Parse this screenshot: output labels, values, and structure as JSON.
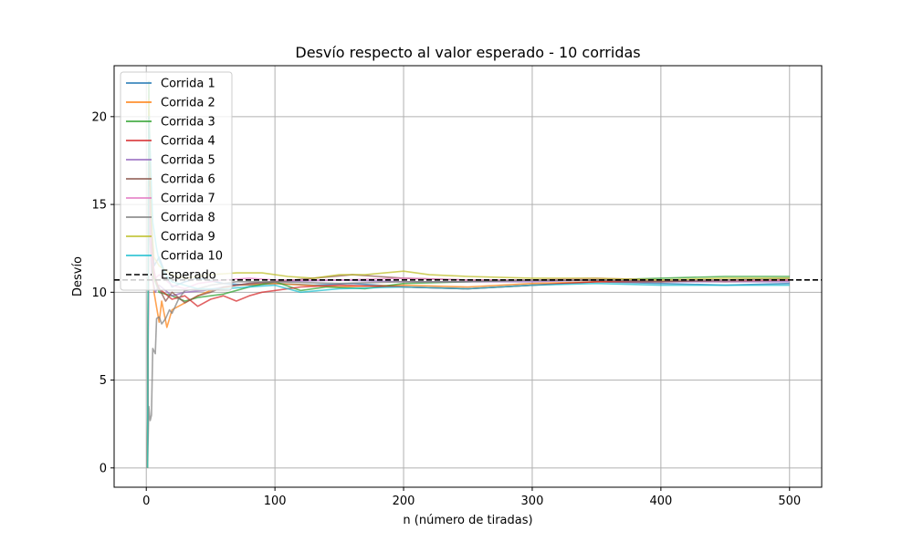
{
  "chart_data": {
    "type": "line",
    "title": "Desvío respecto al valor esperado - 10 corridas",
    "xlabel": "n (número de tiradas)",
    "ylabel": "Desvío",
    "xlim": [
      -25,
      525
    ],
    "ylim": [
      -1.1,
      22.9
    ],
    "xticks": [
      0,
      100,
      200,
      300,
      400,
      500
    ],
    "yticks": [
      0,
      5,
      10,
      15,
      20
    ],
    "grid": true,
    "legend_position": "upper-left",
    "expected": {
      "name": "Esperado",
      "value": 10.7,
      "color": "#000000",
      "style": "dashed"
    },
    "series": [
      {
        "name": "Corrida 1",
        "color": "#1f77b4",
        "points": [
          [
            1,
            0
          ],
          [
            2,
            19
          ],
          [
            4,
            14
          ],
          [
            6,
            11.5
          ],
          [
            10,
            12
          ],
          [
            15,
            11
          ],
          [
            20,
            10.3
          ],
          [
            30,
            10.6
          ],
          [
            40,
            10.8
          ],
          [
            60,
            10.5
          ],
          [
            80,
            10.4
          ],
          [
            100,
            10.5
          ],
          [
            130,
            10.4
          ],
          [
            160,
            10.5
          ],
          [
            200,
            10.3
          ],
          [
            250,
            10.2
          ],
          [
            300,
            10.4
          ],
          [
            350,
            10.6
          ],
          [
            400,
            10.5
          ],
          [
            450,
            10.4
          ],
          [
            500,
            10.5
          ]
        ]
      },
      {
        "name": "Corrida 2",
        "color": "#ff7f0e",
        "points": [
          [
            1,
            0
          ],
          [
            2,
            17
          ],
          [
            4,
            12
          ],
          [
            6,
            10
          ],
          [
            10,
            8.3
          ],
          [
            12,
            9.5
          ],
          [
            16,
            8.0
          ],
          [
            20,
            9.0
          ],
          [
            30,
            9.4
          ],
          [
            40,
            9.8
          ],
          [
            50,
            10.1
          ],
          [
            70,
            10.4
          ],
          [
            100,
            10.5
          ],
          [
            150,
            10.3
          ],
          [
            200,
            10.4
          ],
          [
            250,
            10.3
          ],
          [
            300,
            10.5
          ],
          [
            350,
            10.6
          ],
          [
            400,
            10.7
          ],
          [
            450,
            10.6
          ],
          [
            500,
            10.7
          ]
        ]
      },
      {
        "name": "Corrida 3",
        "color": "#2ca02c",
        "points": [
          [
            1,
            0
          ],
          [
            2,
            22
          ],
          [
            3,
            14
          ],
          [
            5,
            11
          ],
          [
            10,
            10.0
          ],
          [
            20,
            9.8
          ],
          [
            30,
            9.5
          ],
          [
            40,
            9.7
          ],
          [
            60,
            9.9
          ],
          [
            80,
            10.3
          ],
          [
            100,
            10.6
          ],
          [
            120,
            10.1
          ],
          [
            140,
            10.3
          ],
          [
            170,
            10.2
          ],
          [
            200,
            10.5
          ],
          [
            250,
            10.6
          ],
          [
            300,
            10.7
          ],
          [
            350,
            10.7
          ],
          [
            400,
            10.8
          ],
          [
            450,
            10.9
          ],
          [
            480,
            10.9
          ],
          [
            500,
            10.9
          ]
        ]
      },
      {
        "name": "Corrida 4",
        "color": "#d62728",
        "points": [
          [
            1,
            0
          ],
          [
            2,
            20
          ],
          [
            4,
            13
          ],
          [
            6,
            11
          ],
          [
            10,
            10.2
          ],
          [
            20,
            9.6
          ],
          [
            30,
            9.8
          ],
          [
            40,
            9.2
          ],
          [
            50,
            9.6
          ],
          [
            60,
            9.8
          ],
          [
            70,
            9.5
          ],
          [
            80,
            9.8
          ],
          [
            90,
            10.0
          ],
          [
            100,
            10.1
          ],
          [
            120,
            10.3
          ],
          [
            150,
            10.4
          ],
          [
            200,
            10.3
          ],
          [
            250,
            10.2
          ],
          [
            300,
            10.4
          ],
          [
            350,
            10.6
          ],
          [
            400,
            10.6
          ],
          [
            450,
            10.7
          ],
          [
            500,
            10.7
          ]
        ]
      },
      {
        "name": "Corrida 5",
        "color": "#9467bd",
        "points": [
          [
            1,
            0
          ],
          [
            2,
            15
          ],
          [
            4,
            11
          ],
          [
            7,
            10
          ],
          [
            10,
            10.4
          ],
          [
            20,
            9.8
          ],
          [
            30,
            10.0
          ],
          [
            45,
            10.1
          ],
          [
            60,
            10.3
          ],
          [
            80,
            10.5
          ],
          [
            100,
            10.6
          ],
          [
            150,
            10.7
          ],
          [
            200,
            10.6
          ],
          [
            250,
            10.6
          ],
          [
            300,
            10.6
          ],
          [
            350,
            10.7
          ],
          [
            400,
            10.6
          ],
          [
            450,
            10.6
          ],
          [
            500,
            10.6
          ]
        ]
      },
      {
        "name": "Corrida 6",
        "color": "#8c564b",
        "points": [
          [
            1,
            0
          ],
          [
            2,
            18
          ],
          [
            4,
            12
          ],
          [
            8,
            10.5
          ],
          [
            15,
            9.5
          ],
          [
            20,
            10
          ],
          [
            30,
            9.4
          ],
          [
            40,
            9.8
          ],
          [
            50,
            10.0
          ],
          [
            60,
            10.3
          ],
          [
            80,
            10.5
          ],
          [
            100,
            10.6
          ],
          [
            130,
            10.8
          ],
          [
            160,
            11.0
          ],
          [
            180,
            10.9
          ],
          [
            200,
            10.8
          ],
          [
            250,
            10.7
          ],
          [
            300,
            10.7
          ],
          [
            350,
            10.7
          ],
          [
            400,
            10.6
          ],
          [
            450,
            10.7
          ],
          [
            500,
            10.7
          ]
        ]
      },
      {
        "name": "Corrida 7",
        "color": "#e377c2",
        "points": [
          [
            1,
            0
          ],
          [
            2,
            16
          ],
          [
            4,
            12
          ],
          [
            7,
            10.8
          ],
          [
            10,
            11
          ],
          [
            20,
            10.4
          ],
          [
            30,
            10.2
          ],
          [
            40,
            10.5
          ],
          [
            60,
            10.7
          ],
          [
            80,
            10.8
          ],
          [
            100,
            10.7
          ],
          [
            150,
            10.7
          ],
          [
            200,
            10.8
          ],
          [
            250,
            10.7
          ],
          [
            300,
            10.7
          ],
          [
            350,
            10.8
          ],
          [
            400,
            10.7
          ],
          [
            450,
            10.7
          ],
          [
            500,
            10.7
          ]
        ]
      },
      {
        "name": "Corrida 8",
        "color": "#7f7f7f",
        "points": [
          [
            1,
            0
          ],
          [
            2,
            3.5
          ],
          [
            3,
            2.7
          ],
          [
            4,
            3.0
          ],
          [
            5,
            6.8
          ],
          [
            7,
            6.5
          ],
          [
            8,
            8.5
          ],
          [
            10,
            8.6
          ],
          [
            12,
            8.2
          ],
          [
            15,
            8.5
          ],
          [
            18,
            9.0
          ],
          [
            20,
            8.8
          ],
          [
            25,
            9.6
          ],
          [
            30,
            10.1
          ],
          [
            40,
            10.2
          ],
          [
            50,
            10.4
          ],
          [
            70,
            10.6
          ],
          [
            100,
            10.6
          ],
          [
            150,
            10.5
          ],
          [
            200,
            10.6
          ],
          [
            250,
            10.6
          ],
          [
            300,
            10.7
          ],
          [
            350,
            10.7
          ],
          [
            400,
            10.7
          ],
          [
            450,
            10.7
          ],
          [
            500,
            10.8
          ]
        ]
      },
      {
        "name": "Corrida 9",
        "color": "#bcbd22",
        "points": [
          [
            1,
            0
          ],
          [
            2,
            21
          ],
          [
            4,
            14
          ],
          [
            6,
            12
          ],
          [
            10,
            11.5
          ],
          [
            20,
            11.0
          ],
          [
            30,
            10.8
          ],
          [
            50,
            11.0
          ],
          [
            70,
            11.1
          ],
          [
            90,
            11.1
          ],
          [
            110,
            10.9
          ],
          [
            130,
            10.8
          ],
          [
            150,
            11.0
          ],
          [
            170,
            11.0
          ],
          [
            200,
            11.2
          ],
          [
            220,
            11.0
          ],
          [
            250,
            10.9
          ],
          [
            300,
            10.8
          ],
          [
            350,
            10.8
          ],
          [
            400,
            10.7
          ],
          [
            450,
            10.8
          ],
          [
            500,
            10.8
          ]
        ]
      },
      {
        "name": "Corrida 10",
        "color": "#17becf",
        "points": [
          [
            1,
            0
          ],
          [
            2,
            20
          ],
          [
            3,
            18
          ],
          [
            5,
            14
          ],
          [
            8,
            12.5
          ],
          [
            10,
            11.8
          ],
          [
            15,
            11.0
          ],
          [
            20,
            10.6
          ],
          [
            30,
            10.4
          ],
          [
            40,
            10.2
          ],
          [
            60,
            10.2
          ],
          [
            80,
            10.3
          ],
          [
            100,
            10.4
          ],
          [
            120,
            10.0
          ],
          [
            150,
            10.2
          ],
          [
            200,
            10.3
          ],
          [
            250,
            10.2
          ],
          [
            300,
            10.4
          ],
          [
            350,
            10.5
          ],
          [
            400,
            10.4
          ],
          [
            450,
            10.4
          ],
          [
            500,
            10.4
          ]
        ]
      }
    ]
  }
}
